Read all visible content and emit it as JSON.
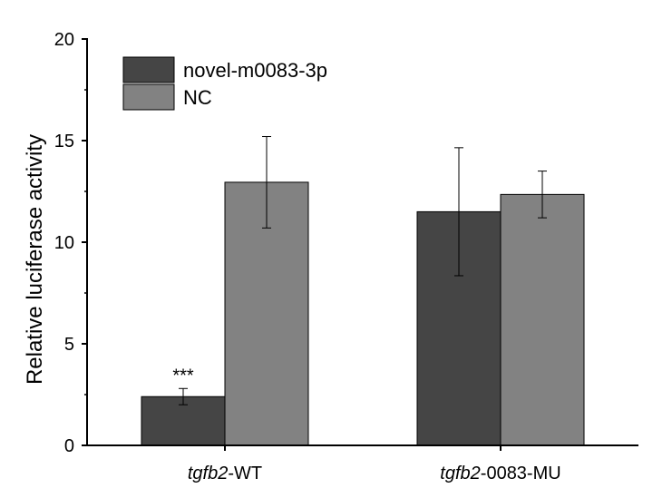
{
  "chart_data": {
    "type": "bar",
    "categories": [
      {
        "italic": "tgfb2",
        "rest": "-WT"
      },
      {
        "italic": "tgfb2",
        "rest": "-0083-MU"
      }
    ],
    "series": [
      {
        "name": "novel-m0083-3p",
        "color": "#454545",
        "values": [
          2.4,
          11.5
        ],
        "errors": [
          0.4,
          3.15
        ]
      },
      {
        "name": "NC",
        "color": "#828282",
        "values": [
          12.95,
          12.35
        ],
        "errors": [
          2.25,
          1.15
        ]
      }
    ],
    "ylabel": "Relative luciferase activity",
    "ylim": [
      0,
      20
    ],
    "yticks": [
      0,
      5,
      10,
      15,
      20
    ],
    "yticks_labels": [
      "0",
      "5",
      "10",
      "15",
      "20"
    ],
    "legend_position": "top-left",
    "grid": false,
    "annotations": [
      {
        "text": "***",
        "category_index": 0,
        "series_index": 0
      }
    ]
  }
}
